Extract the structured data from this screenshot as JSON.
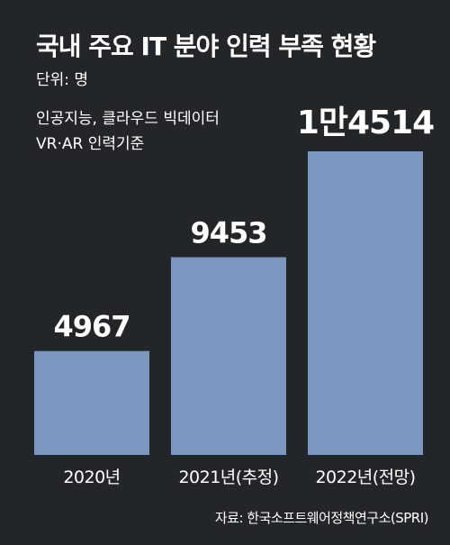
{
  "title": "국내 주요 IT 분야 인력 부족 현황",
  "unit": "단위: 명",
  "note": [
    "인공지능, 클라우드 빅데이터",
    "VR·AR 인력기준"
  ],
  "source": "자료: 한국소프트웨어정책연구소(SPRI)",
  "colors": {
    "background": "#232628",
    "bar": "#7b96bf",
    "text": "#ffffff"
  },
  "chart_data": {
    "type": "bar",
    "categories": [
      "2020년",
      "2021년(추정)",
      "2022년(전망)"
    ],
    "values": [
      4967,
      9453,
      14514
    ],
    "data_labels": [
      "4967",
      "9453",
      "1만4514"
    ],
    "title": "국내 주요 IT 분야 인력 부족 현황",
    "xlabel": "",
    "ylabel": "",
    "ylim": [
      0,
      14514
    ],
    "grid": false,
    "legend": "none"
  }
}
